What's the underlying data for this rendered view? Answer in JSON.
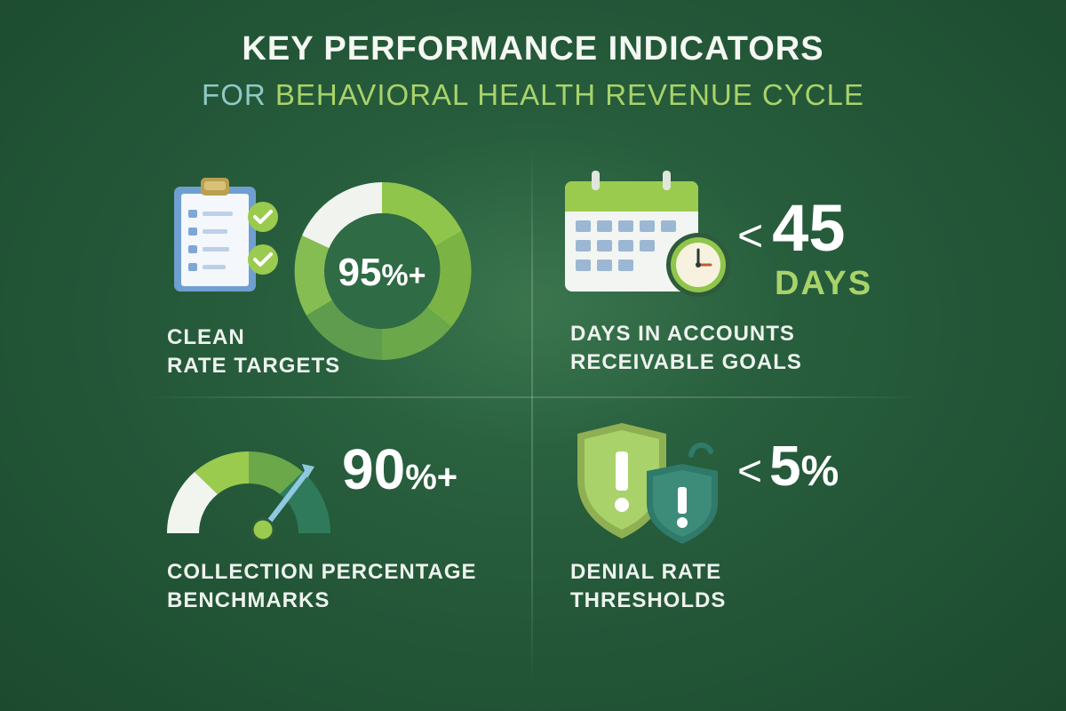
{
  "header": {
    "title": "KEY PERFORMANCE INDICATORS",
    "subtitle_for": "FOR",
    "subtitle_rest": "BEHAVIORAL HEALTH REVENUE CYCLE"
  },
  "kpis": {
    "clean": {
      "value": "95",
      "suffix": "%+",
      "label_line1": "CLEAN",
      "label_line2": "RATE TARGETS",
      "icon": "clipboard-checklist-icon"
    },
    "ar": {
      "prefix": "<",
      "value": "45",
      "unit": "DAYS",
      "label_line1": "DAYS IN ACCOUNTS",
      "label_line2": "RECEIVABLE GOALS",
      "icon": "calendar-clock-icon"
    },
    "collection": {
      "value": "90",
      "suffix": "%+",
      "label_line1": "COLLECTION PERCENTAGE",
      "label_line2": "BENCHMARKS",
      "icon": "gauge-icon"
    },
    "denial": {
      "prefix": "<",
      "value": "5",
      "suffix": "%",
      "label_line1": "DENIAL RATE",
      "label_line2": "THRESHOLDS",
      "icon": "warning-shield-icon"
    }
  },
  "colors": {
    "background": "#255a3a",
    "accent_green": "#a9d36a",
    "accent_teal": "#8fc9c6"
  }
}
